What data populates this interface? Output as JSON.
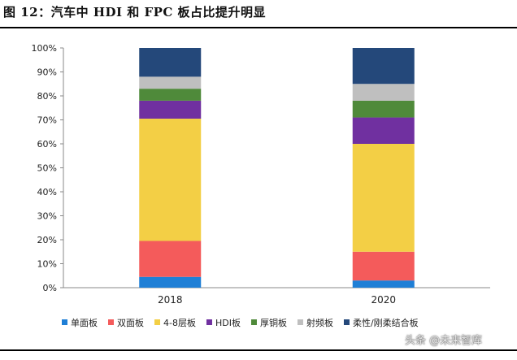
{
  "figure": {
    "title": "图 12：汽车中 HDI 和 FPC 板占比提升明显"
  },
  "watermark": {
    "text": "头条 @未来智库"
  },
  "chart_data": {
    "type": "bar",
    "stacked": true,
    "categories": [
      "2018",
      "2020"
    ],
    "ylim": [
      0,
      100
    ],
    "yticks": [
      "0%",
      "10%",
      "20%",
      "30%",
      "40%",
      "50%",
      "60%",
      "70%",
      "80%",
      "90%",
      "100%"
    ],
    "grid": false,
    "legend": "bottom",
    "series": [
      {
        "name": "单面板",
        "color": "#1f7fd6",
        "values": [
          4.5,
          3
        ]
      },
      {
        "name": "双面板",
        "color": "#f45b5b",
        "values": [
          15,
          12
        ]
      },
      {
        "name": "4-8层板",
        "color": "#f3cf45",
        "values": [
          51,
          45
        ]
      },
      {
        "name": "HDI板",
        "color": "#7030a0",
        "values": [
          7.5,
          11
        ]
      },
      {
        "name": "厚铜板",
        "color": "#4f8a3a",
        "values": [
          5,
          7
        ]
      },
      {
        "name": "射频板",
        "color": "#bfbfbf",
        "values": [
          5,
          7
        ]
      },
      {
        "name": "柔性/刚柔结合板",
        "color": "#24487a",
        "values": [
          12,
          15
        ]
      }
    ]
  }
}
